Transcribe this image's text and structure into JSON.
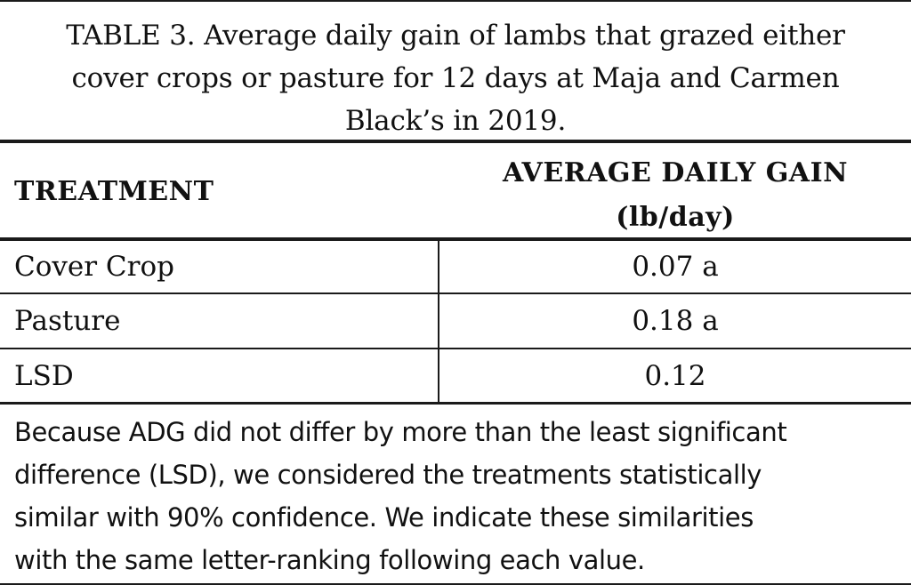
{
  "caption": {
    "line1": "TABLE 3. Average daily gain of lambs that grazed either",
    "line2": "cover crops or pasture for 12 days at Maja and Carmen",
    "line3": "Black’s in 2019."
  },
  "header": {
    "treatment": "TREATMENT",
    "adg_line1": "AVERAGE DAILY GAIN",
    "adg_line2": "(lb/day)"
  },
  "rows": [
    {
      "treatment": "Cover Crop",
      "adg": "0.07 a"
    },
    {
      "treatment": "Pasture",
      "adg": "0.18 a"
    },
    {
      "treatment": "LSD",
      "adg": "0.12"
    }
  ],
  "note": {
    "line1": "Because ADG did not differ by more than the least significant",
    "line2": "difference (LSD), we considered the treatments statistically",
    "line3": "similar with 90% confidence.  We indicate these similarities",
    "line4": "with the same letter-ranking following each value."
  }
}
